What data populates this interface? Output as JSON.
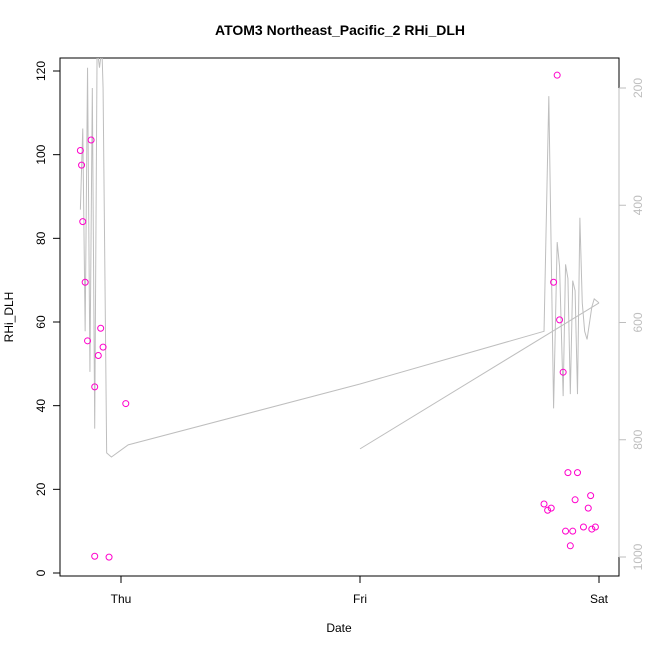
{
  "chart_data": {
    "type": "scatter",
    "title": "ATOM3 Northeast_Pacific_2 RHi_DLH",
    "xlabel": "Date",
    "ylabel": "RHi_DLH",
    "x_ticks": [
      "Thu",
      "Fri",
      "Sat"
    ],
    "xlim": [
      -0.18,
      2.0
    ],
    "ylim": [
      0,
      120
    ],
    "y_ticks": [
      0,
      20,
      40,
      60,
      80,
      100,
      120
    ],
    "y2_ticks": [
      200,
      400,
      600,
      800,
      1000
    ],
    "y2lim": [
      1030,
      100
    ],
    "y2_reversed": true,
    "grid": false,
    "series": [
      {
        "kind": "points",
        "color": "#ff00cc",
        "x": [
          -0.17,
          -0.165,
          -0.16,
          -0.15,
          -0.14,
          -0.125,
          -0.11,
          -0.11,
          -0.095,
          -0.085,
          -0.075,
          -0.05,
          0.02,
          1.77,
          1.785,
          1.8,
          1.81,
          1.825,
          1.835,
          1.85,
          1.86,
          1.87,
          1.88,
          1.89,
          1.9,
          1.91,
          1.935,
          1.955,
          1.965,
          1.97,
          1.985
        ],
        "y": [
          101,
          97.5,
          84,
          69.5,
          55.5,
          103.5,
          44.5,
          4,
          52,
          58.5,
          54,
          3.8,
          40.5,
          16.5,
          15,
          15.5,
          69.5,
          119,
          60.5,
          48,
          10,
          24,
          6.5,
          10,
          17.5,
          24,
          11,
          15.5,
          18.5,
          10.5,
          11
        ]
      },
      {
        "kind": "line",
        "color": "#bebebe",
        "axis": "right",
        "x": [
          -0.17,
          -0.16,
          -0.15,
          -0.14,
          -0.13,
          -0.12,
          -0.11,
          -0.1,
          -0.09,
          -0.08,
          -0.075,
          -0.06,
          -0.05,
          -0.04,
          0.03,
          1.0,
          1.77,
          1.79,
          1.81,
          1.825,
          1.835,
          1.85,
          1.86,
          1.87,
          1.88,
          1.89,
          1.9,
          1.91,
          1.92,
          1.93,
          1.94,
          1.95,
          1.96,
          1.97,
          1.98,
          2.0
        ],
        "y": [
          90,
          110,
          60,
          125,
          50,
          120,
          36,
          130,
          125,
          130,
          120,
          30,
          29.5,
          29,
          32,
          47,
          60,
          118,
          41,
          82,
          76,
          44,
          76.5,
          73,
          44.5,
          72.5,
          70,
          44.5,
          88,
          67,
          60,
          58,
          62,
          66,
          68,
          67
        ]
      },
      {
        "kind": "line",
        "color": "#bebebe",
        "axis": "right",
        "x": [
          1.0,
          2.0
        ],
        "y": [
          31,
          67
        ]
      }
    ]
  }
}
